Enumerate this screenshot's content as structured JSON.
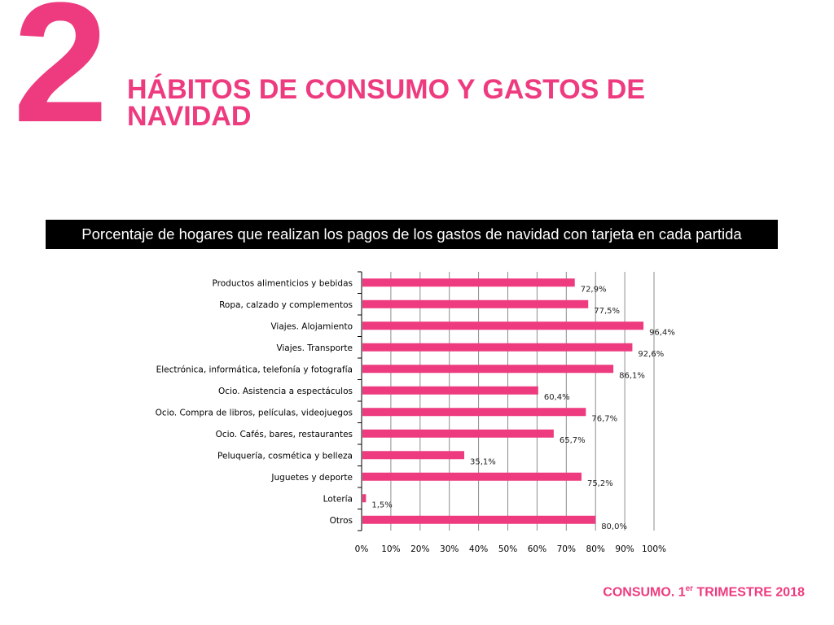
{
  "slide": {
    "number": "2",
    "title": "HÁBITOS DE CONSUMO Y GASTOS DE NAVIDAD",
    "footer": {
      "prefix": "CONSUMO. 1",
      "superscript": "er",
      "suffix": " TRIMESTRE 2018"
    }
  },
  "colors": {
    "accent": "#ee3b7f",
    "banner_bg": "#000000",
    "banner_text": "#ffffff",
    "grid": "#8c8c8c"
  },
  "chart_data": {
    "type": "bar",
    "orientation": "horizontal",
    "title": "Porcentaje de hogares que realizan los pagos de los gastos de navidad con tarjeta en cada partida",
    "categories": [
      "Productos alimenticios y bebidas",
      "Ropa, calzado y complementos",
      "Viajes. Alojamiento",
      "Viajes. Transporte",
      "Electrónica, informática, telefonía y fotografía",
      "Ocio. Asistencia a espectáculos",
      "Ocio. Compra de libros, películas, videojuegos",
      "Ocio. Cafés, bares, restaurantes",
      "Peluquería, cosmética y belleza",
      "Juguetes y deporte",
      "Lotería",
      "Otros"
    ],
    "values": [
      72.9,
      77.5,
      96.4,
      92.6,
      86.1,
      60.4,
      76.7,
      65.7,
      35.1,
      75.2,
      1.5,
      80.0
    ],
    "data_labels": [
      "72,9%",
      "77,5%",
      "96,4%",
      "92,6%",
      "86,1%",
      "60,4%",
      "76,7%",
      "65,7%",
      "35,1%",
      "75,2%",
      "1,5%",
      "80,0%"
    ],
    "xlim": [
      0,
      100
    ],
    "xticks": [
      "0%",
      "10%",
      "20%",
      "30%",
      "40%",
      "50%",
      "60%",
      "70%",
      "80%",
      "90%",
      "100%"
    ],
    "grid": true,
    "legend": false
  }
}
